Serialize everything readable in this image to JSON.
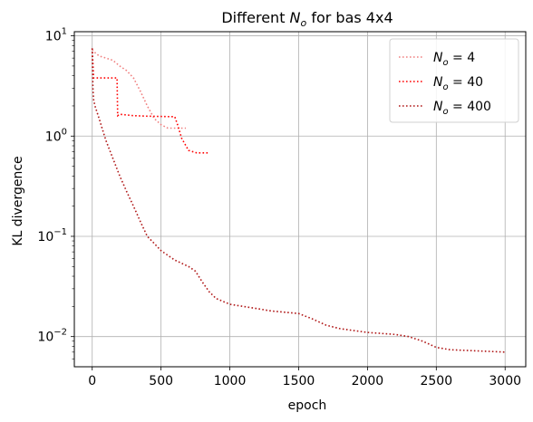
{
  "chart_data": {
    "type": "line",
    "title_parts": {
      "prefix": "Different ",
      "sym": "N",
      "sub": "o",
      "suffix": " for bas 4x4"
    },
    "xlabel": "epoch",
    "ylabel": "KL divergence",
    "xlim": [
      -130,
      3150
    ],
    "ylim": [
      0.005,
      11
    ],
    "y_scale": "log",
    "grid": true,
    "legend_position": "top-right",
    "x_ticks": [
      0,
      500,
      1000,
      1500,
      2000,
      2500,
      3000
    ],
    "y_ticks": [
      {
        "value": 0.01,
        "base": "10",
        "exp": "−2"
      },
      {
        "value": 0.1,
        "base": "10",
        "exp": "−1"
      },
      {
        "value": 1,
        "base": "10",
        "exp": "0"
      },
      {
        "value": 10,
        "base": "10",
        "exp": "1"
      }
    ],
    "series": [
      {
        "legend_sym": "N",
        "legend_sub": "o",
        "legend_rest": " = 4",
        "color": "#f08080",
        "style": "dotted",
        "points": [
          [
            0,
            7.3
          ],
          [
            20,
            6.8
          ],
          [
            50,
            6.3
          ],
          [
            100,
            6.0
          ],
          [
            150,
            5.7
          ],
          [
            200,
            5.0
          ],
          [
            250,
            4.5
          ],
          [
            300,
            3.8
          ],
          [
            350,
            2.8
          ],
          [
            400,
            2.0
          ],
          [
            450,
            1.5
          ],
          [
            500,
            1.3
          ],
          [
            550,
            1.2
          ],
          [
            600,
            1.2
          ],
          [
            680,
            1.2
          ]
        ]
      },
      {
        "legend_sym": "N",
        "legend_sub": "o",
        "legend_rest": " = 40",
        "color": "#ff0000",
        "style": "dotted",
        "points": [
          [
            0,
            7.5
          ],
          [
            10,
            3.8
          ],
          [
            180,
            3.8
          ],
          [
            185,
            1.6
          ],
          [
            200,
            1.65
          ],
          [
            300,
            1.6
          ],
          [
            400,
            1.58
          ],
          [
            500,
            1.57
          ],
          [
            600,
            1.56
          ],
          [
            620,
            1.3
          ],
          [
            650,
            0.95
          ],
          [
            700,
            0.72
          ],
          [
            760,
            0.68
          ],
          [
            840,
            0.68
          ]
        ]
      },
      {
        "legend_sym": "N",
        "legend_sub": "o",
        "legend_rest": " = 400",
        "color": "#b01818",
        "style": "dotted",
        "points": [
          [
            0,
            7.5
          ],
          [
            5,
            3.0
          ],
          [
            10,
            2.3
          ],
          [
            20,
            2.0
          ],
          [
            50,
            1.5
          ],
          [
            100,
            0.9
          ],
          [
            150,
            0.6
          ],
          [
            200,
            0.4
          ],
          [
            250,
            0.28
          ],
          [
            300,
            0.2
          ],
          [
            350,
            0.14
          ],
          [
            400,
            0.1
          ],
          [
            450,
            0.085
          ],
          [
            500,
            0.072
          ],
          [
            600,
            0.058
          ],
          [
            700,
            0.05
          ],
          [
            750,
            0.045
          ],
          [
            800,
            0.035
          ],
          [
            850,
            0.028
          ],
          [
            900,
            0.024
          ],
          [
            1000,
            0.021
          ],
          [
            1200,
            0.019
          ],
          [
            1300,
            0.018
          ],
          [
            1500,
            0.017
          ],
          [
            1600,
            0.015
          ],
          [
            1700,
            0.013
          ],
          [
            1800,
            0.012
          ],
          [
            2000,
            0.011
          ],
          [
            2200,
            0.0105
          ],
          [
            2300,
            0.01
          ],
          [
            2400,
            0.009
          ],
          [
            2500,
            0.0078
          ],
          [
            2600,
            0.0074
          ],
          [
            2800,
            0.0072
          ],
          [
            3000,
            0.007
          ]
        ]
      }
    ]
  }
}
